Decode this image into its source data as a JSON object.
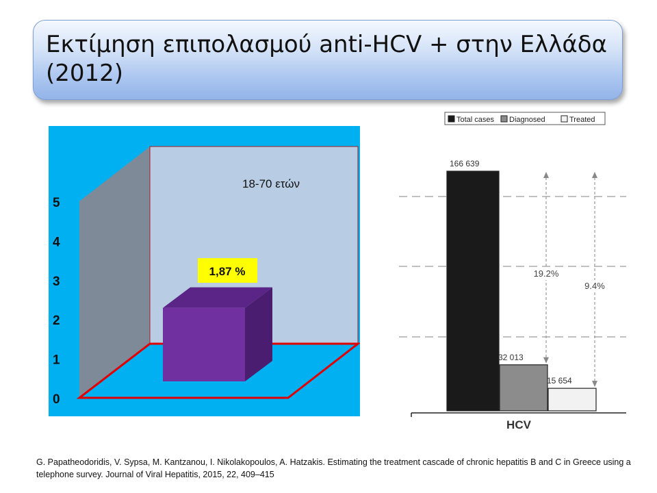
{
  "slide": {
    "title": "Εκτίμηση επιπολασμού anti-HCV + στην Ελλάδα (2012)",
    "citation": "G. Papatheodoridis, V. Sypsa, M. Kantzanou, I. Nikolakopoulos, A. Hatzakis. Estimating the treatment cascade of chronic hepatitis B and C in Greece using a telephone survey. Journal of Viral Hepatitis, 2015, 22, 409–415"
  },
  "chart_data": [
    {
      "type": "bar",
      "style": "3d",
      "categories": [
        ""
      ],
      "values": [
        1.87
      ],
      "data_label": "1,87 %",
      "annotation": "18-70 ετών",
      "yticks": [
        "0",
        "1",
        "2",
        "3",
        "4",
        "5"
      ],
      "ylim": [
        0,
        5
      ],
      "colors": {
        "background": "#00b0f0",
        "bar": "#7030a0",
        "floor_outline": "#e00000",
        "back_wall": "#b8cce4",
        "side_wall": "#7f8a99"
      }
    },
    {
      "type": "bar",
      "categories": [
        "HCV"
      ],
      "legend": [
        "Total cases",
        "Diagnosed",
        "Treated"
      ],
      "legend_position": "top-right",
      "series": [
        {
          "name": "Total cases",
          "values": [
            166639
          ],
          "label": "166 639",
          "color": "#1a1a1a"
        },
        {
          "name": "Diagnosed",
          "values": [
            32013
          ],
          "label": "32 013",
          "color": "#8c8c8c"
        },
        {
          "name": "Treated",
          "values": [
            15654
          ],
          "label": "15 654",
          "color": "#f2f2f2"
        }
      ],
      "annotations": [
        {
          "text": "19.2%",
          "between": [
            "Total cases",
            "Diagnosed"
          ]
        },
        {
          "text": "9.4%",
          "between": [
            "Total cases",
            "Treated"
          ]
        }
      ],
      "grid": true
    }
  ]
}
